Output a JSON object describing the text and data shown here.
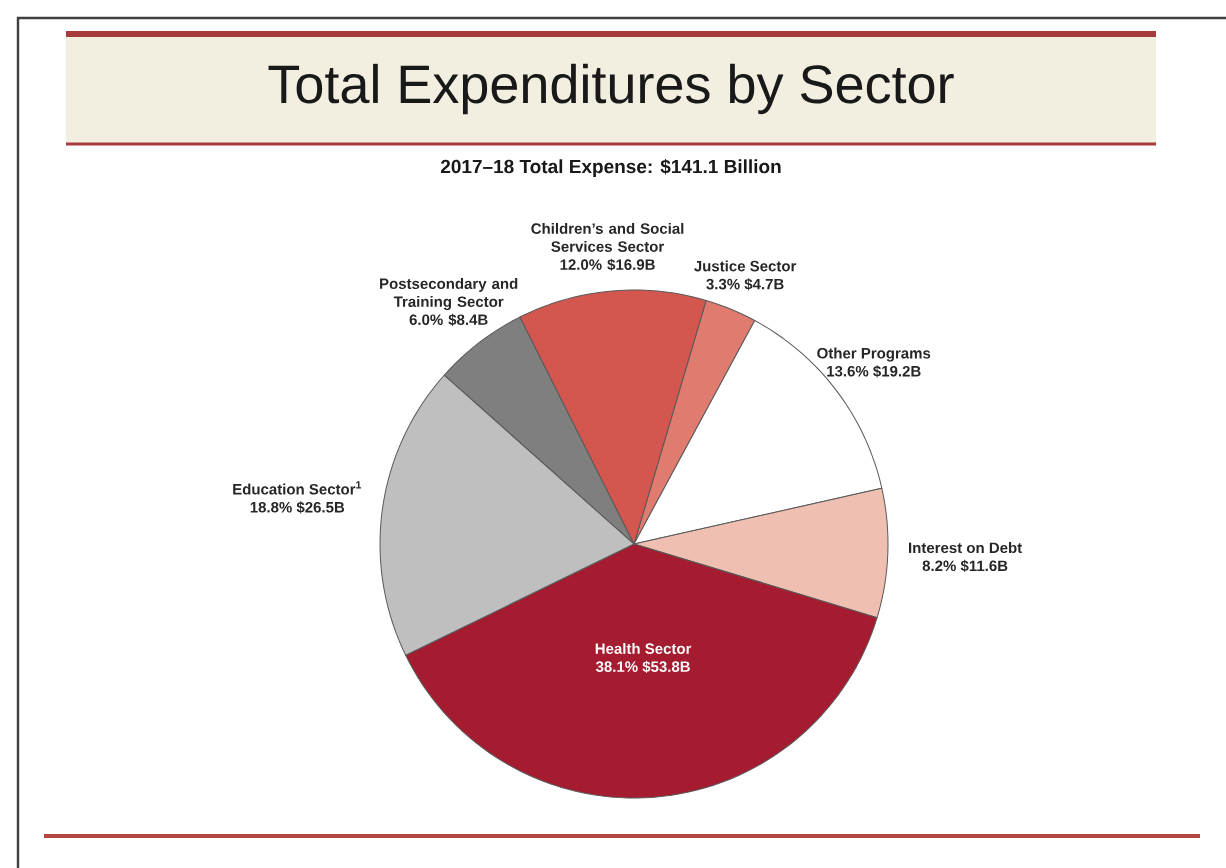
{
  "chart_data": {
    "type": "pie",
    "title": "Total Expenditures by Sector",
    "subtitle": "2017–18 Total Expense: $141.1 Billion",
    "categories": [
      "Justice Sector",
      "Other Programs",
      "Interest on Debt",
      "Health Sector",
      "Education Sector$^{1}$",
      "Postsecondary and Training Sector",
      "Children’s and Social Services Sector"
    ],
    "values": [
      3.3,
      13.6,
      8.2,
      38.1,
      18.8,
      6.0,
      12.0
    ],
    "colors": [
      "#e07b6f",
      "#ffffff",
      "#efc0b2",
      "#a51c30",
      "#bfbfbf",
      "#7f7f7f",
      "#d4574f"
    ],
    "value_labels": [
      "3.3%  $4.7B",
      "13.6%  $19.2B",
      "8.2%  $11.6B",
      "38.1%  $53.8B",
      "18.8%  $26.5B",
      "6.0%  $8.4B",
      "12.0%  $16.9B"
    ]
  }
}
